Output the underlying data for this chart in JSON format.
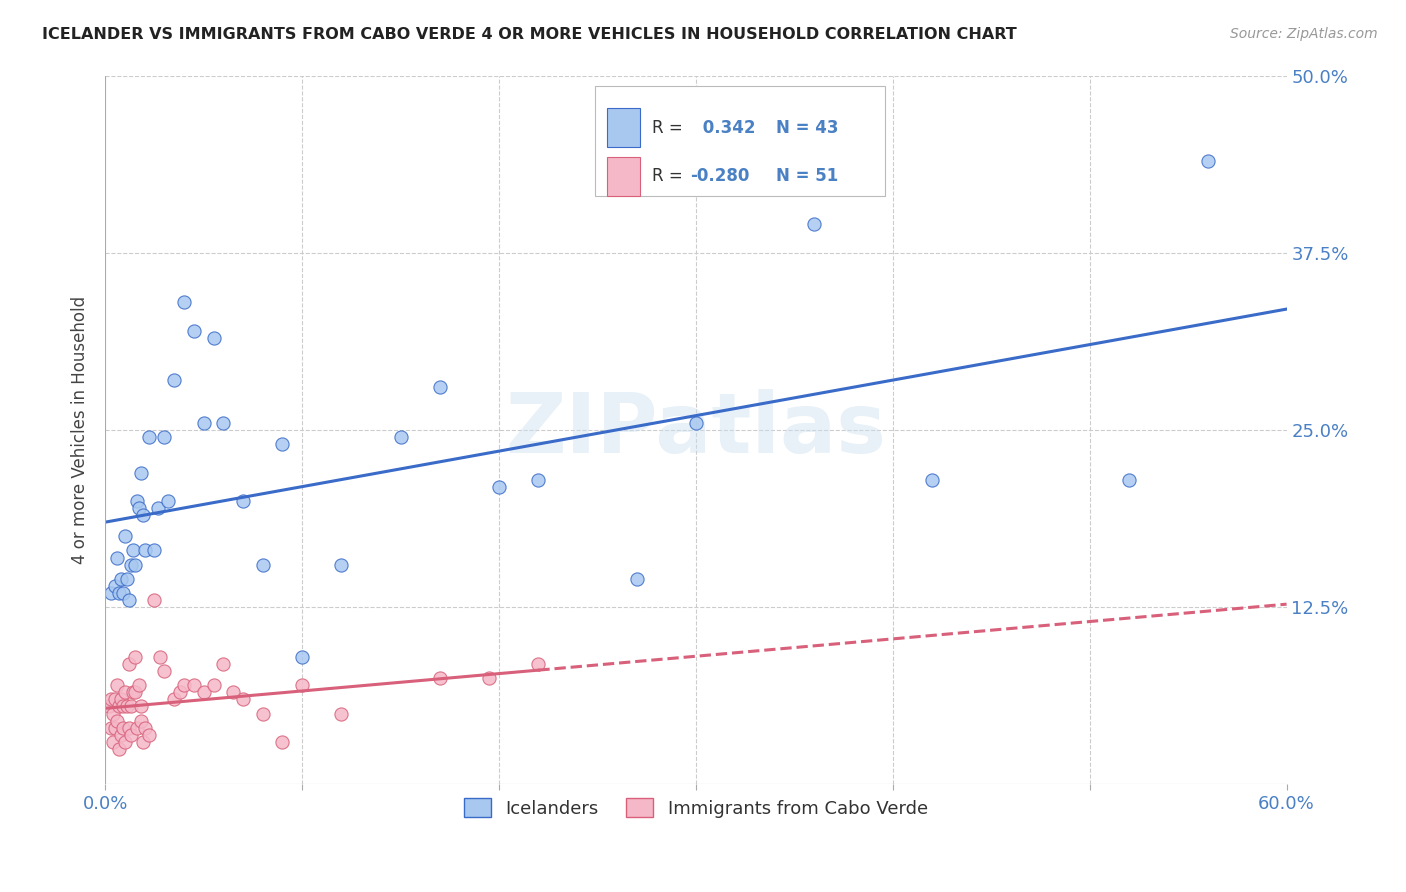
{
  "title": "ICELANDER VS IMMIGRANTS FROM CABO VERDE 4 OR MORE VEHICLES IN HOUSEHOLD CORRELATION CHART",
  "source": "Source: ZipAtlas.com",
  "ylabel": "4 or more Vehicles in Household",
  "xlabel_icelander": "Icelanders",
  "xlabel_caboverde": "Immigrants from Cabo Verde",
  "xmin": 0.0,
  "xmax": 0.6,
  "ymin": 0.0,
  "ymax": 0.5,
  "xticks": [
    0.0,
    0.1,
    0.2,
    0.3,
    0.4,
    0.5,
    0.6
  ],
  "yticks": [
    0.0,
    0.125,
    0.25,
    0.375,
    0.5
  ],
  "color_icelander": "#a8c8f0",
  "color_caboverde": "#f5b8c8",
  "line_color_icelander": "#3a6bc8",
  "line_color_caboverde": "#d8607a",
  "R_icelander": 0.342,
  "N_icelander": 43,
  "R_caboverde": -0.28,
  "N_caboverde": 51,
  "icelander_x": [
    0.003,
    0.005,
    0.006,
    0.007,
    0.008,
    0.009,
    0.01,
    0.011,
    0.012,
    0.013,
    0.014,
    0.015,
    0.016,
    0.017,
    0.018,
    0.019,
    0.02,
    0.022,
    0.025,
    0.027,
    0.03,
    0.032,
    0.035,
    0.04,
    0.045,
    0.05,
    0.055,
    0.06,
    0.07,
    0.08,
    0.09,
    0.1,
    0.12,
    0.15,
    0.17,
    0.2,
    0.22,
    0.27,
    0.3,
    0.36,
    0.42,
    0.52,
    0.56
  ],
  "icelander_y": [
    0.135,
    0.14,
    0.16,
    0.135,
    0.145,
    0.135,
    0.175,
    0.145,
    0.13,
    0.155,
    0.165,
    0.155,
    0.2,
    0.195,
    0.22,
    0.19,
    0.165,
    0.245,
    0.165,
    0.195,
    0.245,
    0.2,
    0.285,
    0.34,
    0.32,
    0.255,
    0.315,
    0.255,
    0.2,
    0.155,
    0.24,
    0.09,
    0.155,
    0.245,
    0.28,
    0.21,
    0.215,
    0.145,
    0.255,
    0.395,
    0.215,
    0.215,
    0.44
  ],
  "caboverde_x": [
    0.002,
    0.003,
    0.003,
    0.004,
    0.004,
    0.005,
    0.005,
    0.006,
    0.006,
    0.007,
    0.007,
    0.008,
    0.008,
    0.009,
    0.009,
    0.01,
    0.01,
    0.011,
    0.012,
    0.012,
    0.013,
    0.013,
    0.014,
    0.015,
    0.015,
    0.016,
    0.017,
    0.018,
    0.018,
    0.019,
    0.02,
    0.022,
    0.025,
    0.028,
    0.03,
    0.035,
    0.038,
    0.04,
    0.045,
    0.05,
    0.055,
    0.06,
    0.065,
    0.07,
    0.08,
    0.09,
    0.1,
    0.12,
    0.17,
    0.195,
    0.22
  ],
  "caboverde_y": [
    0.055,
    0.06,
    0.04,
    0.05,
    0.03,
    0.06,
    0.04,
    0.07,
    0.045,
    0.055,
    0.025,
    0.06,
    0.035,
    0.055,
    0.04,
    0.065,
    0.03,
    0.055,
    0.085,
    0.04,
    0.055,
    0.035,
    0.065,
    0.065,
    0.09,
    0.04,
    0.07,
    0.045,
    0.055,
    0.03,
    0.04,
    0.035,
    0.13,
    0.09,
    0.08,
    0.06,
    0.065,
    0.07,
    0.07,
    0.065,
    0.07,
    0.085,
    0.065,
    0.06,
    0.05,
    0.03,
    0.07,
    0.05,
    0.075,
    0.075,
    0.085
  ],
  "background_color": "#ffffff",
  "watermark": "ZIPatlas"
}
